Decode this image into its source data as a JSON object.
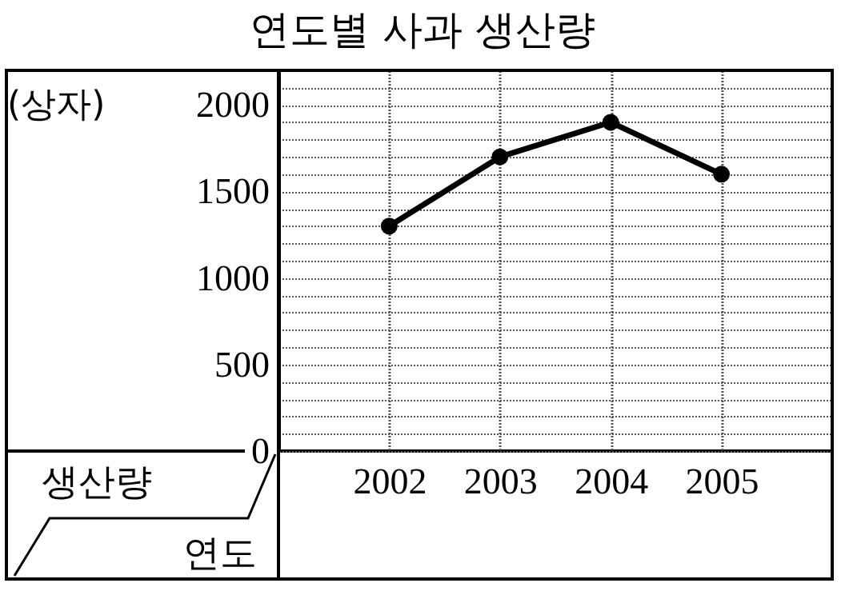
{
  "chart_data": {
    "type": "line",
    "title": "연도별 사과 생산량",
    "ylabel": "(상자)",
    "xlabel": "연도",
    "annotations": [
      "생산량"
    ],
    "categories": [
      "2002",
      "2003",
      "2004",
      "2005"
    ],
    "series": [
      {
        "color": "#000000",
        "values": [
          1300,
          1700,
          1900,
          1600
        ]
      }
    ],
    "ylim": [
      0,
      2200
    ],
    "yticks": [
      0,
      {
        "value": 100,
        "label": null
      },
      {
        "value": 200,
        "label": null
      },
      {
        "value": 300,
        "label": null
      },
      {
        "value": 400,
        "label": null
      },
      500,
      {
        "value": 600,
        "label": null
      },
      {
        "value": 700,
        "label": null
      },
      {
        "value": 800,
        "label": null
      },
      {
        "value": 900,
        "label": null
      },
      1000,
      {
        "value": 1100,
        "label": null
      },
      {
        "value": 1200,
        "label": null
      },
      {
        "value": 1300,
        "label": null
      },
      {
        "value": 1400,
        "label": null
      },
      1500,
      {
        "value": 1600,
        "label": null
      },
      {
        "value": 1700,
        "label": null
      },
      {
        "value": 1800,
        "label": null
      },
      {
        "value": 1900,
        "label": null
      },
      2000,
      {
        "value": 2100,
        "label": null
      },
      {
        "value": 2200,
        "label": null
      }
    ],
    "grid": true,
    "marker": "circle",
    "line_style": "solid",
    "legend": false
  }
}
